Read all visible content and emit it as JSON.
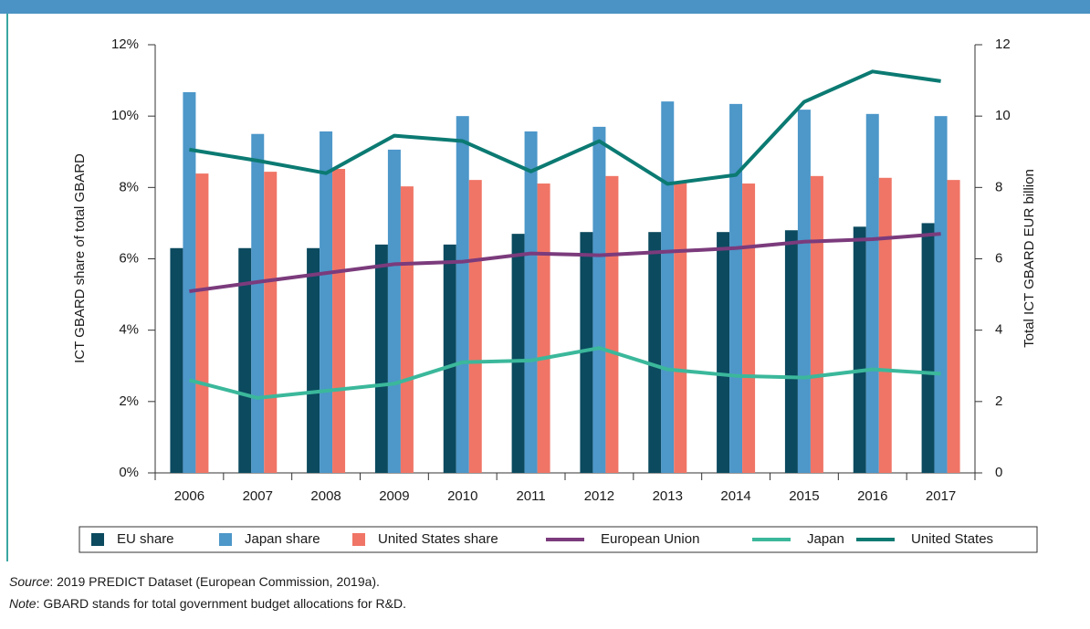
{
  "chart_data": {
    "type": "bar-line",
    "categories": [
      "2006",
      "2007",
      "2008",
      "2009",
      "2010",
      "2011",
      "2012",
      "2013",
      "2014",
      "2015",
      "2016",
      "2017"
    ],
    "series": [
      {
        "name": "EU share",
        "type": "bar",
        "color": "#0b4a5f",
        "values": [
          6.3,
          6.3,
          6.3,
          6.4,
          6.4,
          6.7,
          6.75,
          6.75,
          6.75,
          6.8,
          6.9,
          7.0
        ]
      },
      {
        "name": "Japan share",
        "type": "bar",
        "color": "#4d97c9",
        "values": [
          10.67,
          9.5,
          9.57,
          9.06,
          10.0,
          9.57,
          9.7,
          10.41,
          10.34,
          10.18,
          10.06,
          10.0
        ]
      },
      {
        "name": "United States share",
        "type": "bar",
        "color": "#f07566",
        "values": [
          8.39,
          8.44,
          8.52,
          8.03,
          8.21,
          8.11,
          8.32,
          8.14,
          8.11,
          8.32,
          8.27,
          8.21
        ]
      },
      {
        "name": "European Union",
        "type": "line",
        "axis": "y2",
        "color": "#7b3b7c",
        "values": [
          5.09,
          5.35,
          5.6,
          5.85,
          5.92,
          6.15,
          6.1,
          6.2,
          6.3,
          6.48,
          6.55,
          6.7
        ]
      },
      {
        "name": "Japan",
        "type": "line",
        "axis": "y2",
        "color": "#3bb89b",
        "values": [
          2.6,
          2.1,
          2.3,
          2.5,
          3.1,
          3.15,
          3.5,
          2.9,
          2.72,
          2.67,
          2.9,
          2.78
        ]
      },
      {
        "name": "United States",
        "type": "line",
        "axis": "y2",
        "color": "#0b7a72",
        "values": [
          9.06,
          8.75,
          8.4,
          9.45,
          9.3,
          8.45,
          9.3,
          8.1,
          8.35,
          10.4,
          11.25,
          10.98
        ]
      }
    ],
    "ylabel": "ICT GBARD share of total GBARD",
    "y2label": "Total ICT GBARD EUR billion",
    "ylim": [
      0,
      12
    ],
    "yticks": [
      {
        "value": 0,
        "label": "0%"
      },
      {
        "value": 2,
        "label": "2%"
      },
      {
        "value": 4,
        "label": "4%"
      },
      {
        "value": 6,
        "label": "6%"
      },
      {
        "value": 8,
        "label": "8%"
      },
      {
        "value": 10,
        "label": "10%"
      },
      {
        "value": 12,
        "label": "12%"
      }
    ],
    "y2lim": [
      0,
      12
    ],
    "y2ticks": [
      0,
      2,
      4,
      6,
      8,
      10,
      12
    ],
    "legend": "bottom",
    "source_label": "Source",
    "source": ": 2019 PREDICT Dataset (European Commission, 2019a).",
    "note_label": "Note",
    "note": ": GBARD stands for total government budget allocations for R&D."
  }
}
